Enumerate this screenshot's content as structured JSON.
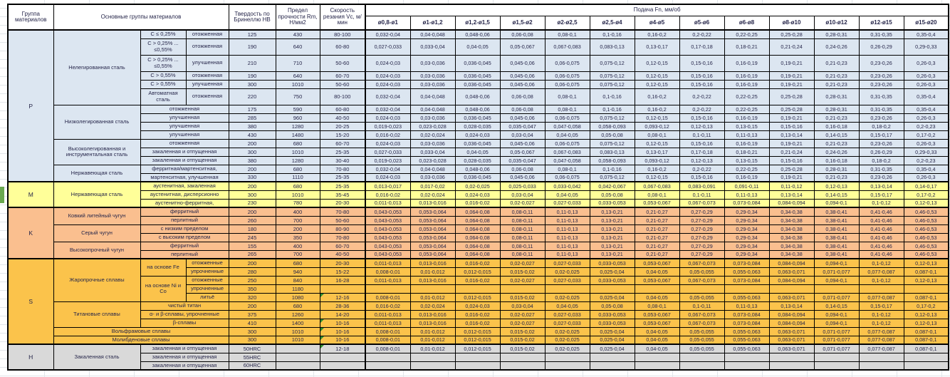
{
  "header": {
    "group": "Группа материалов",
    "main": "Основные группы материалов",
    "hardness": "Твердость по Бринеллю HB",
    "strength": "Предел прочности Rm, Н/мм2",
    "speed": "Скорость резания Vc, м/мин",
    "feed": "Подача Fn, мм/об",
    "feed_cols": [
      "ø0,8-ø1",
      "ø1-ø1,2",
      "ø1,2-ø1,5",
      "ø1,5-ø2",
      "ø2-ø2,5",
      "ø2,5-ø4",
      "ø4-ø5",
      "ø5-ø6",
      "ø6-ø8",
      "ø8-ø10",
      "ø10-ø12",
      "ø12-ø15",
      "ø15-ø20"
    ]
  },
  "feed_patterns": {
    "A": [
      "0,032-0,04",
      "0,04-0,048",
      "0,048-0,06",
      "0,06-0,08",
      "0,08-0,1",
      "0,1-0,16",
      "0,16-0,2",
      "0,2-0,22",
      "0,22-0,25",
      "0,25-0,28",
      "0,28-0,31",
      "0,31-0,35",
      "0,35-0,4"
    ],
    "B": [
      "0,027-0,033",
      "0,033-0,04",
      "0,04-0,05",
      "0,05-0,067",
      "0,067-0,083",
      "0,083-0,13",
      "0,13-0,17",
      "0,17-0,18",
      "0,18-0,21",
      "0,21-0,24",
      "0,24-0,26",
      "0,26-0,29",
      "0,29-0,33"
    ],
    "C": [
      "0,024-0,03",
      "0,03-0,036",
      "0,036-0,045",
      "0,045-0,06",
      "0,06-0,075",
      "0,075-0,12",
      "0,12-0,15",
      "0,15-0,16",
      "0,16-0,19",
      "0,19-0,21",
      "0,21-0,23",
      "0,23-0,26",
      "0,26-0,3"
    ],
    "D": [
      "0,019-0,023",
      "0,023-0,028",
      "0,028-0,035",
      "0,035-0,047",
      "0,047-0,058",
      "0,058-0,093",
      "0,093-0,12",
      "0,12-0,13",
      "0,13-0,15",
      "0,15-0,16",
      "0,16-0,18",
      "0,18-0,2",
      "0,2-0,23"
    ],
    "E": [
      "0,016-0,02",
      "0,02-0,024",
      "0,024-0,03",
      "0,03-0,04",
      "0,04-0,05",
      "0,05-0,08",
      "0,08-0,1",
      "0,1-0,11",
      "0,11-0,13",
      "0,13-0,14",
      "0,14-0,15",
      "0,15-0,17",
      "0,17-0,2"
    ],
    "F": [
      "0,013-0,017",
      "0,017-0,02",
      "0,02-0,025",
      "0,025-0,033",
      "0,033-0,042",
      "0,042-0,067",
      "0,067-0,083",
      "0,083-0,091",
      "0,091-0,11",
      "0,11-0,12",
      "0,12-0,13",
      "0,13-0,14",
      "0,14-0,17"
    ],
    "G": [
      "0,011-0,013",
      "0,013-0,016",
      "0,016-0,02",
      "0,02-0,027",
      "0,027-0,033",
      "0,033-0,053",
      "0,053-0,067",
      "0,067-0,073",
      "0,073-0,084",
      "0,084-0,094",
      "0,094-0,1",
      "0,1-0,12",
      "0,12-0,13"
    ],
    "H": [
      "0,008-0,01",
      "0,01-0,012",
      "0,012-0,015",
      "0,015-0,02",
      "0,02-0,025",
      "0,025-0,04",
      "0,04-0,05",
      "0,05-0,055",
      "0,055-0,063",
      "0,063-0,071",
      "0,071-0,077",
      "0,077-0,087",
      "0,087-0,1"
    ],
    "K": [
      "0,043-0,053",
      "0,053-0,064",
      "0,064-0,08",
      "0,08-0,11",
      "0,11-0,13",
      "0,13-0,21",
      "0,21-0,27",
      "0,27-0,29",
      "0,29-0,34",
      "0,34-0,38",
      "0,38-0,41",
      "0,41-0,46",
      "0,46-0,53"
    ]
  },
  "sections": [
    {
      "letter": "P",
      "color": "#dce6f1",
      "rows": [
        {
          "labels": [
            {
              "text": "Нелегированная сталь",
              "cs": 1,
              "rs": 6
            },
            {
              "text": "C ≤ 0,25%",
              "cs": 1,
              "rs": 1
            },
            {
              "text": "отожженная",
              "cs": 1,
              "rs": 1
            }
          ],
          "hb": "125",
          "rm": "430",
          "vc": "80-100",
          "feed": "A"
        },
        {
          "labels": [
            {
              "text": "C > 0,25% ... ≤0,55%",
              "cs": 1,
              "rs": 1
            },
            {
              "text": "отожженная",
              "cs": 1,
              "rs": 1
            }
          ],
          "hb": "190",
          "rm": "640",
          "vc": "60-80",
          "feed": "B",
          "tall": true
        },
        {
          "labels": [
            {
              "text": "C > 0,25% ... ≤0,55%",
              "cs": 1,
              "rs": 1
            },
            {
              "text": "улучшенная",
              "cs": 1,
              "rs": 1
            }
          ],
          "hb": "210",
          "rm": "710",
          "vc": "50-60",
          "feed": "C",
          "tall": true
        },
        {
          "labels": [
            {
              "text": "C > 0,55%",
              "cs": 1,
              "rs": 1
            },
            {
              "text": "отожженная",
              "cs": 1,
              "rs": 1
            }
          ],
          "hb": "190",
          "rm": "640",
          "vc": "60-70",
          "feed": "C"
        },
        {
          "labels": [
            {
              "text": "C > 0,55%",
              "cs": 1,
              "rs": 1
            },
            {
              "text": "улучшенная",
              "cs": 1,
              "rs": 1
            }
          ],
          "hb": "300",
          "rm": "1010",
          "vc": "50-60",
          "feed": "C"
        },
        {
          "labels": [
            {
              "text": "Автоматная сталь",
              "cs": 1,
              "rs": 1
            },
            {
              "text": "отожженная",
              "cs": 1,
              "rs": 1
            }
          ],
          "hb": "220",
          "rm": "750",
          "vc": "80-100",
          "feed": "A",
          "tall": true
        },
        {
          "labels": [
            {
              "text": "Низколегированная сталь",
              "cs": 1,
              "rs": 4
            },
            {
              "text": "отожженная",
              "cs": 2,
              "rs": 1
            }
          ],
          "hb": "175",
          "rm": "590",
          "vc": "60-80",
          "feed": "A"
        },
        {
          "labels": [
            {
              "text": "улучшенная",
              "cs": 2,
              "rs": 1
            }
          ],
          "hb": "285",
          "rm": "960",
          "vc": "40-50",
          "feed": "C"
        },
        {
          "labels": [
            {
              "text": "улучшенная",
              "cs": 2,
              "rs": 1
            }
          ],
          "hb": "380",
          "rm": "1280",
          "vc": "20-25",
          "feed": "D"
        },
        {
          "labels": [
            {
              "text": "улучшенная",
              "cs": 2,
              "rs": 1
            }
          ],
          "hb": "430",
          "rm": "1480",
          "vc": "15-20",
          "feed": "E"
        },
        {
          "labels": [
            {
              "text": "Высоколегированная и инструментальная сталь",
              "cs": 1,
              "rs": 3
            },
            {
              "text": "отожженная",
              "cs": 2,
              "rs": 1
            }
          ],
          "hb": "200",
          "rm": "680",
          "vc": "60-70",
          "feed": "C"
        },
        {
          "labels": [
            {
              "text": "закаленная и отпущенная",
              "cs": 2,
              "rs": 1
            }
          ],
          "hb": "300",
          "rm": "1010",
          "vc": "25-35",
          "feed": "B"
        },
        {
          "labels": [
            {
              "text": "закаленная и отпущенная",
              "cs": 2,
              "rs": 1
            }
          ],
          "hb": "380",
          "rm": "1280",
          "vc": "30-40",
          "feed": "D"
        },
        {
          "labels": [
            {
              "text": "Нержавеющая сталь",
              "cs": 1,
              "rs": 2
            },
            {
              "text": "ферритная/мартенситная,",
              "cs": 2,
              "rs": 1
            }
          ],
          "hb": "200",
          "rm": "680",
          "vc": "70-80",
          "feed": "A"
        },
        {
          "labels": [
            {
              "text": "мартенситная, улучшенная",
              "cs": 2,
              "rs": 1
            }
          ],
          "hb": "330",
          "rm": "1110",
          "vc": "25-35",
          "feed": "C"
        }
      ]
    },
    {
      "letter": "M",
      "color": "#ffff99",
      "rows": [
        {
          "labels": [
            {
              "text": "Нержавеющая сталь",
              "cs": 1,
              "rs": 3
            },
            {
              "text": "аустенитная, закаленная",
              "cs": 2,
              "rs": 1
            }
          ],
          "hb": "200",
          "rm": "680",
          "vc": "25-35",
          "feed": "F"
        },
        {
          "labels": [
            {
              "text": "аустенитная, дисперсионно",
              "cs": 2,
              "rs": 1
            }
          ],
          "hb": "300",
          "rm": "1010",
          "vc": "35-45",
          "feed": "E"
        },
        {
          "labels": [
            {
              "text": "аустенитно-ферритная,",
              "cs": 2,
              "rs": 1
            }
          ],
          "hb": "230",
          "rm": "780",
          "vc": "20-30",
          "feed": "G"
        }
      ]
    },
    {
      "letter": "K",
      "color": "#fabf8f",
      "rows": [
        {
          "labels": [
            {
              "text": "Ковкий литейный чугун",
              "cs": 1,
              "rs": 2
            },
            {
              "text": "ферритный",
              "cs": 2,
              "rs": 1
            }
          ],
          "hb": "200",
          "rm": "400",
          "vc": "70-80",
          "feed": "K"
        },
        {
          "labels": [
            {
              "text": "перлитный",
              "cs": 2,
              "rs": 1
            }
          ],
          "hb": "260",
          "rm": "700",
          "vc": "50-60",
          "feed": "K"
        },
        {
          "labels": [
            {
              "text": "Серый чугун",
              "cs": 1,
              "rs": 2
            },
            {
              "text": "с низким пределом",
              "cs": 2,
              "rs": 1
            }
          ],
          "hb": "180",
          "rm": "200",
          "vc": "80-90",
          "feed": "K"
        },
        {
          "labels": [
            {
              "text": "с высоким пределом",
              "cs": 2,
              "rs": 1
            }
          ],
          "hb": "245",
          "rm": "350",
          "vc": "70-80",
          "feed": "K"
        },
        {
          "labels": [
            {
              "text": "Высокопрочный чугун",
              "cs": 1,
              "rs": 2
            },
            {
              "text": "ферритный",
              "cs": 2,
              "rs": 1
            }
          ],
          "hb": "155",
          "rm": "400",
          "vc": "60-70",
          "feed": "K"
        },
        {
          "labels": [
            {
              "text": "перлитный",
              "cs": 2,
              "rs": 1
            }
          ],
          "hb": "265",
          "rm": "700",
          "vc": "40-50",
          "feed": "K"
        }
      ]
    },
    {
      "letter": "S",
      "color": "#fbc34b",
      "rows": [
        {
          "labels": [
            {
              "text": "Жаропрочные сплавы",
              "cs": 1,
              "rs": 5
            },
            {
              "text": "на основе Fe",
              "cs": 1,
              "rs": 2
            },
            {
              "text": "отожженные",
              "cs": 1,
              "rs": 1
            }
          ],
          "hb": "200",
          "rm": "680",
          "vc": "20-30",
          "feed": "G"
        },
        {
          "labels": [
            {
              "text": "упрочненные",
              "cs": 1,
              "rs": 1
            }
          ],
          "hb": "280",
          "rm": "940",
          "vc": "15-22",
          "feed": "H"
        },
        {
          "labels": [
            {
              "text": "на основе Ni и Co",
              "cs": 1,
              "rs": 3
            },
            {
              "text": "отожженные",
              "cs": 1,
              "rs": 1
            }
          ],
          "hb": "250",
          "rm": "840",
          "vc": "16-28",
          "feed": "G"
        },
        {
          "labels": [
            {
              "text": "упрочненные",
              "cs": 1,
              "rs": 1
            }
          ],
          "hb": "350",
          "rm": "1180",
          "vc": "",
          "feed": null
        },
        {
          "labels": [
            {
              "text": "литьё",
              "cs": 1,
              "rs": 1
            }
          ],
          "hb": "320",
          "rm": "1080",
          "vc": "12-16",
          "note": true,
          "feed": "H"
        },
        {
          "labels": [
            {
              "text": "Титановые сплавы",
              "cs": 1,
              "rs": 3
            },
            {
              "text": "чистый титан",
              "cs": 2,
              "rs": 1
            }
          ],
          "hb": "200",
          "rm": "680",
          "vc": "28-36",
          "feed": "E"
        },
        {
          "labels": [
            {
              "text": "α- и β-сплавы, упрочненные",
              "cs": 2,
              "rs": 1
            }
          ],
          "hb": "375",
          "rm": "1260",
          "vc": "14-20",
          "feed": "G"
        },
        {
          "labels": [
            {
              "text": "β-сплавы",
              "cs": 2,
              "rs": 1
            }
          ],
          "hb": "410",
          "rm": "1400",
          "vc": "10-16",
          "note": true,
          "feed": "G"
        },
        {
          "labels": [
            {
              "text": "Вольфрамовые сплавы",
              "cs": 3,
              "rs": 1
            }
          ],
          "hb": "300",
          "rm": "1010",
          "vc": "10-16",
          "note": true,
          "feed": "H"
        },
        {
          "labels": [
            {
              "text": "Молибденовые сплавы",
              "cs": 3,
              "rs": 1
            }
          ],
          "hb": "300",
          "rm": "1010",
          "vc": "10-16",
          "note": true,
          "feed": "H"
        }
      ]
    },
    {
      "letter": "H",
      "color": "#d9d9d9",
      "rows": [
        {
          "labels": [
            {
              "text": "Закаленная сталь",
              "cs": 1,
              "rs": 3
            },
            {
              "text": "закаленная и отпущенная",
              "cs": 2,
              "rs": 1
            }
          ],
          "hb": "50HRC",
          "rm": "",
          "vc": "12-18",
          "note": true,
          "feed": "H"
        },
        {
          "labels": [
            {
              "text": "закаленная и отпущенная",
              "cs": 2,
              "rs": 1
            }
          ],
          "hb": "55HRC",
          "rm": "",
          "vc": "",
          "feed": null
        },
        {
          "labels": [
            {
              "text": "закаленная и отпущенная",
              "cs": 2,
              "rs": 1
            }
          ],
          "hb": "60HRC",
          "rm": "",
          "vc": "",
          "feed": null
        }
      ]
    }
  ]
}
